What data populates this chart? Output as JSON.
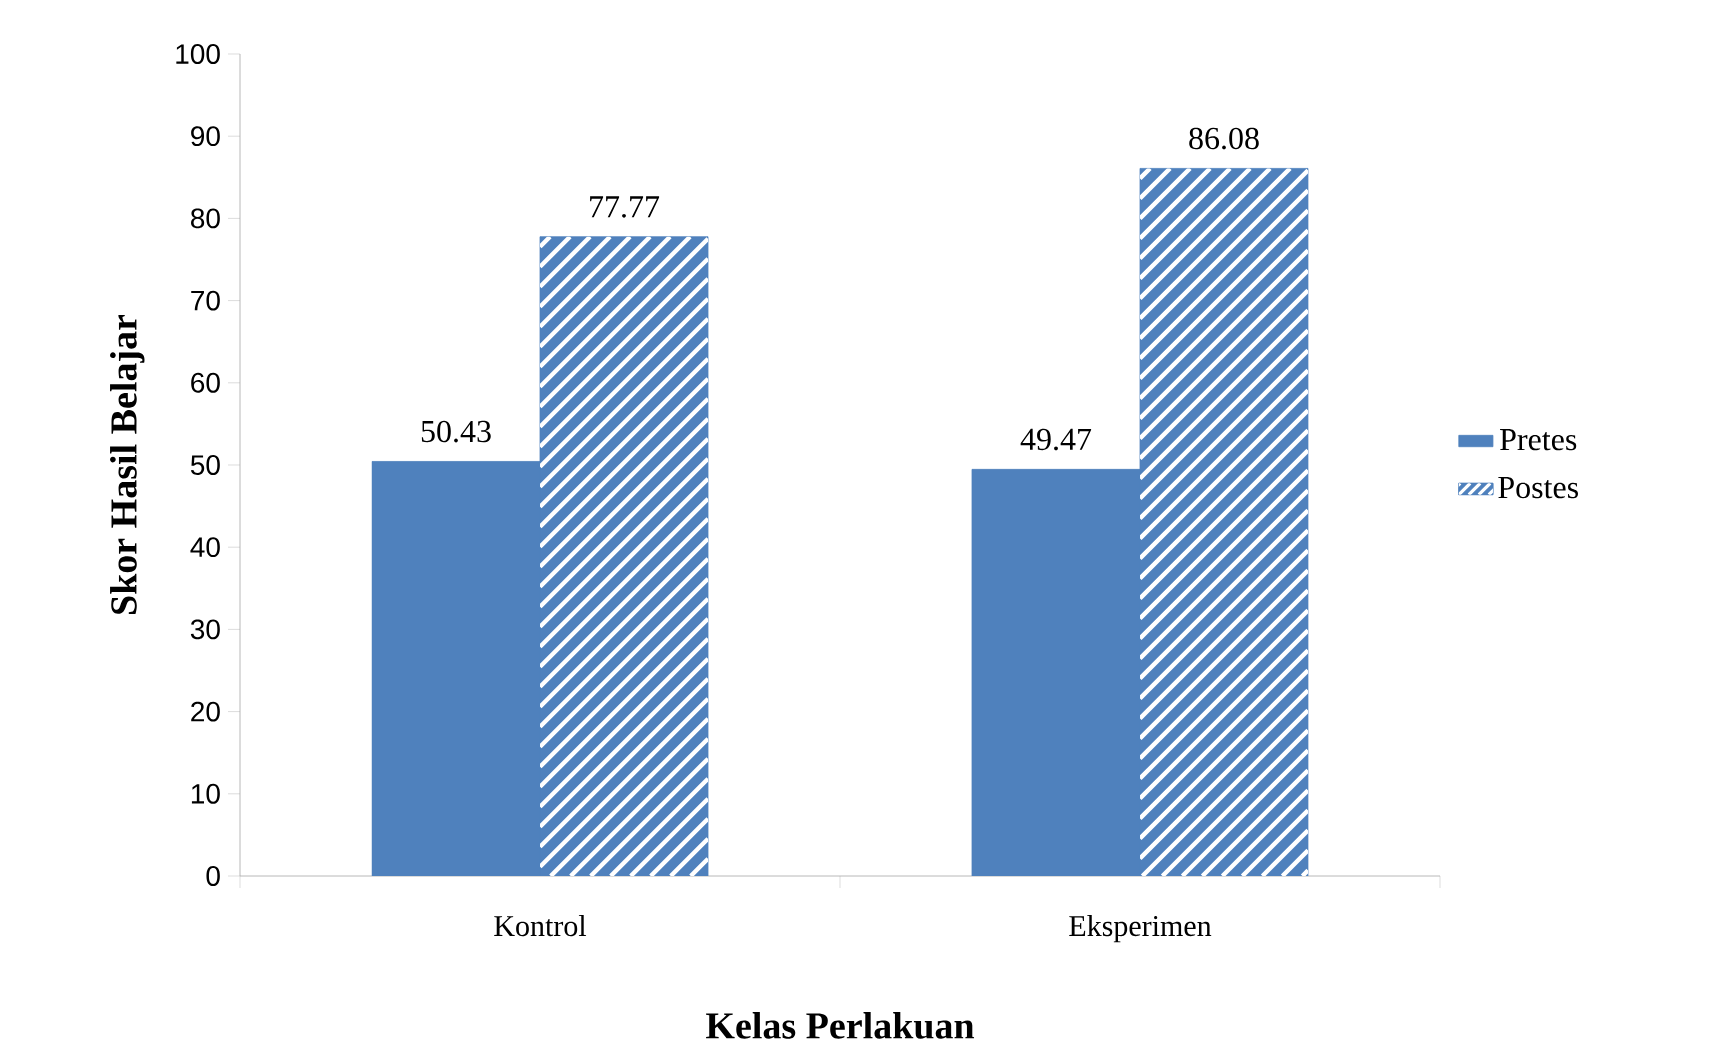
{
  "chart_data": {
    "type": "bar",
    "xlabel": "Kelas Perlakuan",
    "ylabel": "Skor Hasil Belajar",
    "categories": [
      "Kontrol",
      "Eksperimen"
    ],
    "series": [
      {
        "name": "Pretes",
        "color": "#4f81bd",
        "values": [
          50.43,
          49.47
        ]
      },
      {
        "name": "Postes",
        "color": "#4f81bd",
        "values": [
          77.77,
          86.08
        ]
      }
    ],
    "ylim": [
      0,
      100
    ],
    "yticks": [
      0,
      10,
      20,
      30,
      40,
      50,
      60,
      70,
      80,
      90,
      100
    ],
    "data_labels": true,
    "legend": "right",
    "grid": false
  }
}
